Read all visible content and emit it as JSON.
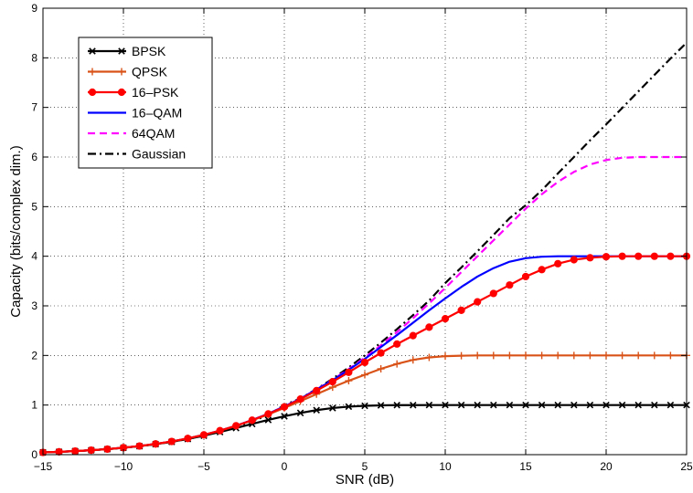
{
  "chart_data": {
    "type": "line",
    "title": "",
    "xlabel": "SNR (dB)",
    "ylabel": "Capacity (bits/complex dim.)",
    "xlim": [
      -15,
      25
    ],
    "ylim": [
      0,
      9
    ],
    "xticks": [
      -15,
      -10,
      -5,
      0,
      5,
      10,
      15,
      20,
      25
    ],
    "yticks": [
      0,
      1,
      2,
      3,
      4,
      5,
      6,
      7,
      8,
      9
    ],
    "xtick_labels": [
      "−15",
      "−10",
      "−5",
      "0",
      "5",
      "10",
      "15",
      "20",
      "25"
    ],
    "ytick_labels": [
      "0",
      "1",
      "2",
      "3",
      "4",
      "5",
      "6",
      "7",
      "8",
      "9"
    ],
    "grid": true,
    "legend_position": "top-left",
    "series": [
      {
        "name": "BPSK",
        "color": "#000000",
        "line_style": "solid",
        "marker": "x",
        "x": [
          -15,
          -14,
          -13,
          -12,
          -11,
          -10,
          -9,
          -8,
          -7,
          -6,
          -5,
          -4,
          -3,
          -2,
          -1,
          0,
          1,
          2,
          3,
          4,
          5,
          6,
          7,
          8,
          9,
          10,
          11,
          12,
          13,
          14,
          15,
          16,
          17,
          18,
          19,
          20,
          21,
          22,
          23,
          24,
          25
        ],
        "y": [
          0.045,
          0.057,
          0.071,
          0.089,
          0.111,
          0.138,
          0.171,
          0.211,
          0.259,
          0.316,
          0.382,
          0.456,
          0.537,
          0.62,
          0.7,
          0.774,
          0.841,
          0.897,
          0.94,
          0.969,
          0.985,
          0.994,
          0.998,
          0.999,
          1.0,
          1.0,
          1.0,
          1.0,
          1.0,
          1.0,
          1.0,
          1.0,
          1.0,
          1.0,
          1.0,
          1.0,
          1.0,
          1.0,
          1.0,
          1.0,
          1.0
        ]
      },
      {
        "name": "QPSK",
        "color": "#d95319",
        "line_style": "solid",
        "marker": "+",
        "x": [
          -15,
          -14,
          -13,
          -12,
          -11,
          -10,
          -9,
          -8,
          -7,
          -6,
          -5,
          -4,
          -3,
          -2,
          -1,
          0,
          1,
          2,
          3,
          4,
          5,
          6,
          7,
          8,
          9,
          10,
          11,
          12,
          13,
          14,
          15,
          16,
          17,
          18,
          19,
          20,
          21,
          22,
          23,
          24,
          25
        ],
        "y": [
          0.045,
          0.057,
          0.071,
          0.09,
          0.112,
          0.14,
          0.174,
          0.216,
          0.266,
          0.327,
          0.399,
          0.483,
          0.58,
          0.69,
          0.811,
          0.942,
          1.08,
          1.22,
          1.36,
          1.49,
          1.61,
          1.73,
          1.83,
          1.91,
          1.96,
          1.985,
          1.995,
          2.0,
          2.0,
          2.0,
          2.0,
          2.0,
          2.0,
          2.0,
          2.0,
          2.0,
          2.0,
          2.0,
          2.0,
          2.0,
          2.0
        ]
      },
      {
        "name": "16–PSK",
        "color": "#ff0000",
        "line_style": "solid",
        "marker": "o",
        "x": [
          -15,
          -14,
          -13,
          -12,
          -11,
          -10,
          -9,
          -8,
          -7,
          -6,
          -5,
          -4,
          -3,
          -2,
          -1,
          0,
          1,
          2,
          3,
          4,
          5,
          6,
          7,
          8,
          9,
          10,
          11,
          12,
          13,
          14,
          15,
          16,
          17,
          18,
          19,
          20,
          21,
          22,
          23,
          24,
          25
        ],
        "y": [
          0.045,
          0.057,
          0.071,
          0.09,
          0.112,
          0.14,
          0.174,
          0.216,
          0.266,
          0.327,
          0.399,
          0.484,
          0.583,
          0.695,
          0.822,
          0.962,
          1.12,
          1.29,
          1.47,
          1.66,
          1.86,
          2.05,
          2.23,
          2.4,
          2.57,
          2.74,
          2.91,
          3.08,
          3.25,
          3.42,
          3.59,
          3.73,
          3.85,
          3.93,
          3.97,
          3.99,
          4.0,
          4.0,
          4.0,
          4.0,
          4.0
        ]
      },
      {
        "name": "16–QAM",
        "color": "#0000ff",
        "line_style": "solid",
        "marker": "none",
        "x": [
          -15,
          -14,
          -13,
          -12,
          -11,
          -10,
          -9,
          -8,
          -7,
          -6,
          -5,
          -4,
          -3,
          -2,
          -1,
          0,
          1,
          2,
          3,
          4,
          5,
          6,
          7,
          8,
          9,
          10,
          11,
          12,
          13,
          14,
          15,
          16,
          17,
          18,
          19,
          20,
          21,
          22,
          23,
          24,
          25
        ],
        "y": [
          0.045,
          0.057,
          0.071,
          0.09,
          0.112,
          0.14,
          0.174,
          0.216,
          0.266,
          0.327,
          0.399,
          0.484,
          0.583,
          0.697,
          0.826,
          0.97,
          1.13,
          1.31,
          1.5,
          1.71,
          1.93,
          2.17,
          2.41,
          2.66,
          2.91,
          3.15,
          3.38,
          3.59,
          3.76,
          3.89,
          3.96,
          3.99,
          4.0,
          4.0,
          4.0,
          4.0,
          4.0,
          4.0,
          4.0,
          4.0,
          4.0
        ]
      },
      {
        "name": "64QAM",
        "color": "#ff00ff",
        "line_style": "dashed",
        "marker": "none",
        "x": [
          -15,
          -14,
          -13,
          -12,
          -11,
          -10,
          -9,
          -8,
          -7,
          -6,
          -5,
          -4,
          -3,
          -2,
          -1,
          0,
          1,
          2,
          3,
          4,
          5,
          6,
          7,
          8,
          9,
          10,
          11,
          12,
          13,
          14,
          15,
          16,
          17,
          18,
          19,
          20,
          21,
          22,
          23,
          24,
          25
        ],
        "y": [
          0.045,
          0.057,
          0.071,
          0.09,
          0.112,
          0.14,
          0.174,
          0.216,
          0.266,
          0.327,
          0.399,
          0.484,
          0.583,
          0.697,
          0.827,
          0.972,
          1.133,
          1.314,
          1.512,
          1.725,
          1.955,
          2.205,
          2.47,
          2.75,
          3.05,
          3.36,
          3.68,
          4.0,
          4.32,
          4.64,
          4.96,
          5.25,
          5.5,
          5.7,
          5.85,
          5.94,
          5.985,
          6.0,
          6.0,
          6.0,
          6.0
        ]
      },
      {
        "name": "Gaussian",
        "color": "#000000",
        "line_style": "dashdot",
        "marker": "none",
        "x": [
          -15,
          -14,
          -13,
          -12,
          -11,
          -10,
          -9,
          -8,
          -7,
          -6,
          -5,
          -4,
          -3,
          -2,
          -1,
          0,
          1,
          2,
          3,
          4,
          5,
          6,
          7,
          8,
          9,
          10,
          11,
          12,
          13,
          14,
          15,
          16,
          17,
          18,
          19,
          20,
          21,
          22,
          23,
          24,
          25
        ],
        "y": [
          0.045,
          0.057,
          0.071,
          0.09,
          0.112,
          0.138,
          0.171,
          0.21,
          0.258,
          0.316,
          0.385,
          0.467,
          0.563,
          0.673,
          0.798,
          1.0,
          1.133,
          1.322,
          1.53,
          1.757,
          2.0,
          2.258,
          2.53,
          2.813,
          3.107,
          3.459,
          3.773,
          4.099,
          4.43,
          4.767,
          5.028,
          5.33,
          5.668,
          6.0,
          6.336,
          6.658,
          6.99,
          7.322,
          7.654,
          7.986,
          8.305
        ]
      }
    ]
  }
}
